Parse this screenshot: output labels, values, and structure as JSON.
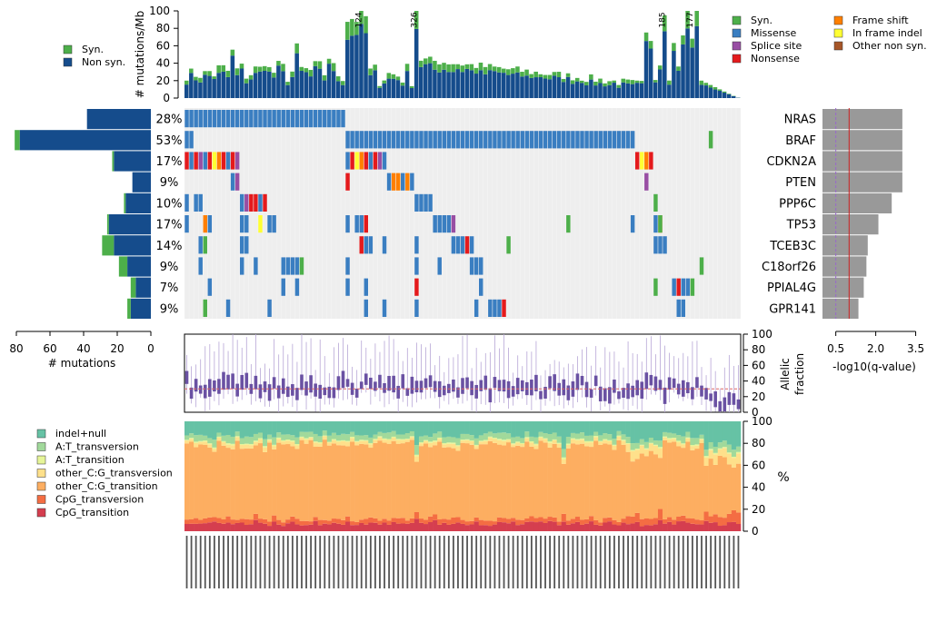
{
  "chart_data": {
    "type": "oncoplot",
    "top_panel": {
      "ylabel": "# mutations/Mb",
      "ylim": [
        0,
        100
      ],
      "yticks": [
        "0",
        "20",
        "40",
        "60",
        "80",
        "100"
      ],
      "series": [
        {
          "name": "Syn.",
          "color": "#4daf4a"
        },
        {
          "name": "Non syn.",
          "color": "#154c8c"
        }
      ],
      "overflow_labels": [
        "124",
        "326",
        "185",
        "177"
      ]
    },
    "mutation_legend": [
      {
        "name": "Syn.",
        "color": "#4daf4a"
      },
      {
        "name": "Missense",
        "color": "#3a7ec1"
      },
      {
        "name": "Splice site",
        "color": "#984ea3"
      },
      {
        "name": "Nonsense",
        "color": "#e41a1c"
      },
      {
        "name": "Frame shift",
        "color": "#ff7f00"
      },
      {
        "name": "In frame indel",
        "color": "#ffff33"
      },
      {
        "name": "Other non syn.",
        "color": "#a65628"
      }
    ],
    "genes": [
      {
        "gene": "NRAS",
        "pct": "28%",
        "nonsyn": 38,
        "syn": 0,
        "q": 3.0
      },
      {
        "gene": "BRAF",
        "pct": "53%",
        "nonsyn": 78,
        "syn": 3,
        "q": 3.0
      },
      {
        "gene": "CDKN2A",
        "pct": "17%",
        "nonsyn": 22,
        "syn": 1,
        "q": 3.0
      },
      {
        "gene": "PTEN",
        "pct": "9%",
        "nonsyn": 11,
        "syn": 0,
        "q": 3.0
      },
      {
        "gene": "PPP6C",
        "pct": "10%",
        "nonsyn": 15,
        "syn": 1,
        "q": 2.6
      },
      {
        "gene": "TP53",
        "pct": "17%",
        "nonsyn": 25,
        "syn": 1,
        "q": 2.1
      },
      {
        "gene": "TCEB3C",
        "pct": "14%",
        "nonsyn": 22,
        "syn": 7,
        "q": 1.7
      },
      {
        "gene": "C18orf26",
        "pct": "9%",
        "nonsyn": 14,
        "syn": 5,
        "q": 1.65
      },
      {
        "gene": "PPIAL4G",
        "pct": "7%",
        "nonsyn": 9,
        "syn": 3,
        "q": 1.55
      },
      {
        "gene": "GPR141",
        "pct": "9%",
        "nonsyn": 12,
        "syn": 2,
        "q": 1.35
      }
    ],
    "left_panel": {
      "xlabel": "# mutations",
      "xticks": [
        "80",
        "60",
        "40",
        "20",
        "0"
      ],
      "xlim": [
        0,
        80
      ]
    },
    "right_panel": {
      "xlabel": "-log10(q-value)",
      "xticks": [
        "0.5",
        "2.0",
        "3.5"
      ],
      "threshold_red": 1.0,
      "threshold_purple": 0.5
    },
    "af_panel": {
      "ylabel": "Allelic fraction",
      "yticks": [
        "0",
        "20",
        "40",
        "60",
        "80",
        "100"
      ],
      "mean_line": 30
    },
    "spectrum_panel": {
      "ylabel": "%",
      "yticks": [
        "0",
        "20",
        "40",
        "60",
        "80",
        "100"
      ],
      "categories": [
        {
          "name": "indel+null",
          "color": "#66c2a5"
        },
        {
          "name": "A:T_transversion",
          "color": "#a1d99b"
        },
        {
          "name": "A:T_transition",
          "color": "#e6f598"
        },
        {
          "name": "other_C:G_transversion",
          "color": "#fee08b"
        },
        {
          "name": "other_C:G_transition",
          "color": "#fdae61"
        },
        {
          "name": "CpG_transversion",
          "color": "#f46d43"
        },
        {
          "name": "CpG_transition",
          "color": "#d53e4f"
        }
      ],
      "typical": [
        12,
        5,
        1,
        3,
        68,
        4,
        7
      ]
    },
    "sample_count": 121
  }
}
